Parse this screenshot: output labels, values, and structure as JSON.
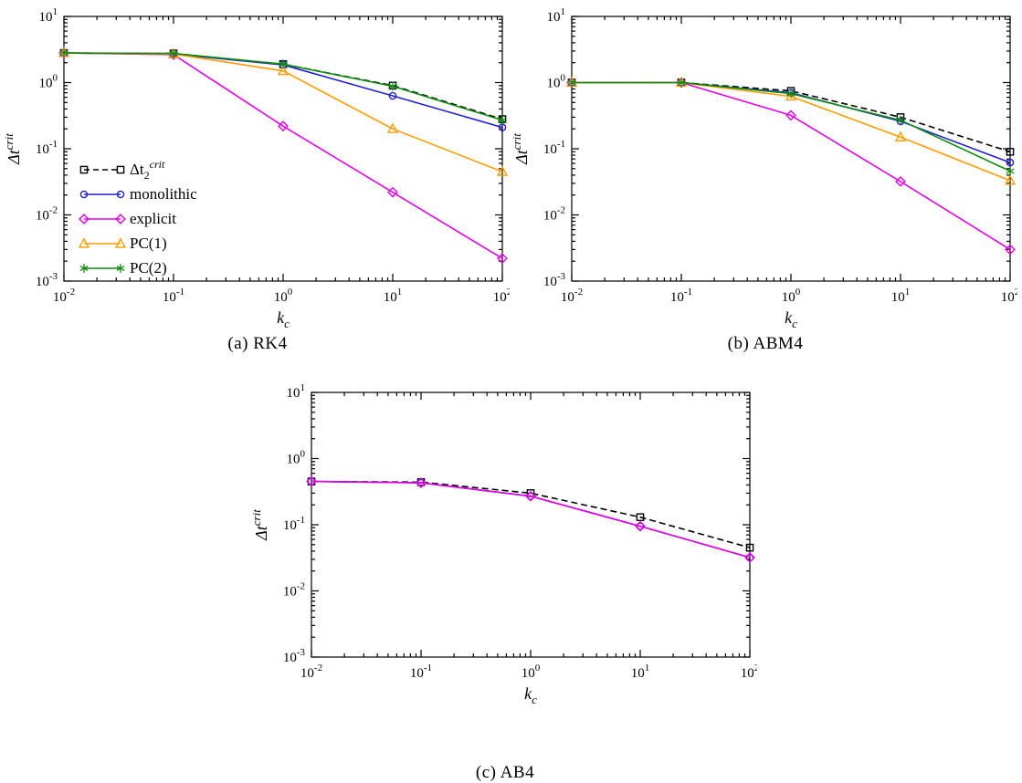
{
  "figure": {
    "captions": [
      {
        "id": "a",
        "text": "(a) RK4"
      },
      {
        "id": "b",
        "text": "(b) ABM4"
      },
      {
        "id": "c",
        "text": "(c) AB4"
      }
    ]
  },
  "chart_data": [
    {
      "type": "line",
      "caption": "(a) RK4",
      "xscale": "log",
      "yscale": "log",
      "xlim": [
        0.01,
        100
      ],
      "ylim": [
        0.001,
        10
      ],
      "xlabel": {
        "main": "k",
        "sub": "c"
      },
      "ylabel": {
        "main": "Δt",
        "sup": "crit"
      },
      "x": [
        0.01,
        0.1,
        1,
        10,
        100
      ],
      "legend": true,
      "series": [
        {
          "label": "Δt",
          "label_sub": "2",
          "label_sup": "crit",
          "color": "#000000",
          "marker": "square",
          "dash": true,
          "values": [
            2.8,
            2.75,
            1.9,
            0.9,
            0.28
          ]
        },
        {
          "label": "monolithic",
          "color": "#2020cc",
          "marker": "circle",
          "dash": false,
          "values": [
            2.8,
            2.7,
            1.85,
            0.63,
            0.21
          ]
        },
        {
          "label": "explicit",
          "color": "#e500e5",
          "marker": "diamond",
          "dash": false,
          "values": [
            2.8,
            2.65,
            0.22,
            0.022,
            0.0022
          ]
        },
        {
          "label": "PC(1)",
          "color": "#ff9c00",
          "marker": "triangle",
          "dash": false,
          "values": [
            2.8,
            2.7,
            1.5,
            0.2,
            0.045
          ]
        },
        {
          "label": "PC(2)",
          "color": "#0e8c0e",
          "marker": "asterisk",
          "dash": false,
          "values": [
            2.8,
            2.75,
            1.9,
            0.88,
            0.27
          ]
        }
      ]
    },
    {
      "type": "line",
      "caption": "(b) ABM4",
      "xscale": "log",
      "yscale": "log",
      "xlim": [
        0.01,
        100
      ],
      "ylim": [
        0.001,
        10
      ],
      "xlabel": {
        "main": "k",
        "sub": "c"
      },
      "ylabel": {
        "main": "Δt",
        "sup": "crit"
      },
      "x": [
        0.01,
        0.1,
        1,
        10,
        100
      ],
      "legend": false,
      "series": [
        {
          "label": "Δt",
          "label_sub": "2",
          "label_sup": "crit",
          "color": "#000000",
          "marker": "square",
          "dash": true,
          "values": [
            1.0,
            1.0,
            0.75,
            0.3,
            0.09
          ]
        },
        {
          "label": "monolithic",
          "color": "#2020cc",
          "marker": "circle",
          "dash": false,
          "values": [
            1.0,
            1.0,
            0.7,
            0.26,
            0.062
          ]
        },
        {
          "label": "explicit",
          "color": "#e500e5",
          "marker": "diamond",
          "dash": false,
          "values": [
            1.0,
            1.0,
            0.32,
            0.032,
            0.003
          ]
        },
        {
          "label": "PC(1)",
          "color": "#ff9c00",
          "marker": "triangle",
          "dash": false,
          "values": [
            1.0,
            1.0,
            0.62,
            0.15,
            0.033
          ]
        },
        {
          "label": "PC(2)",
          "color": "#0e8c0e",
          "marker": "asterisk",
          "dash": false,
          "values": [
            1.0,
            1.0,
            0.68,
            0.27,
            0.046
          ]
        }
      ]
    },
    {
      "type": "line",
      "caption": "(c) AB4",
      "xscale": "log",
      "yscale": "log",
      "xlim": [
        0.01,
        100
      ],
      "ylim": [
        0.001,
        10
      ],
      "xlabel": {
        "main": "k",
        "sub": "c"
      },
      "ylabel": {
        "main": "Δt",
        "sup": "crit"
      },
      "x": [
        0.01,
        0.1,
        1,
        10,
        100
      ],
      "legend": false,
      "series": [
        {
          "label": "Δt",
          "label_sub": "2",
          "label_sup": "crit",
          "color": "#000000",
          "marker": "square",
          "dash": true,
          "values": [
            0.45,
            0.44,
            0.3,
            0.13,
            0.045
          ]
        },
        {
          "label": "monolithic",
          "color": "#2020cc",
          "marker": "circle",
          "dash": false,
          "values": [
            0.45,
            0.43,
            0.27,
            0.095,
            0.032
          ]
        },
        {
          "label": "explicit",
          "color": "#e500e5",
          "marker": "diamond",
          "dash": false,
          "values": [
            0.45,
            0.43,
            0.27,
            0.095,
            0.032
          ]
        }
      ]
    }
  ]
}
